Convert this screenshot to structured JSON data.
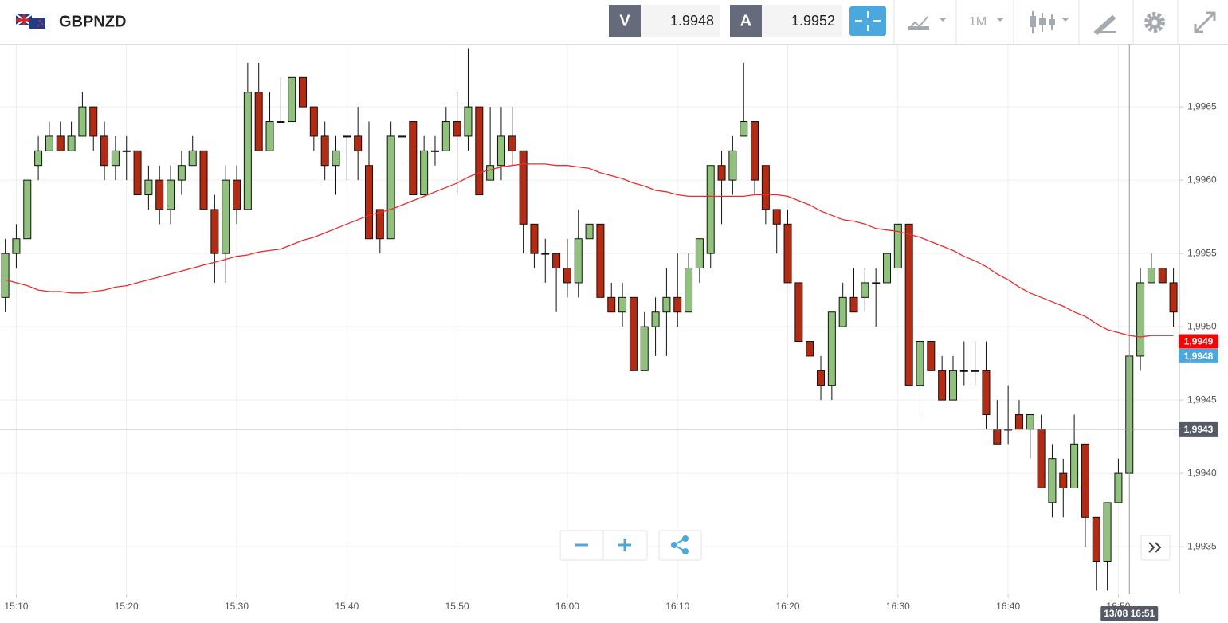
{
  "header": {
    "symbol": "GBPNZD",
    "bid_label": "V",
    "bid": "1.9948",
    "ask_label": "A",
    "ask": "1.9952",
    "timeframe": "1M"
  },
  "chart_data": {
    "type": "candlestick",
    "categories": [
      null,
      "15:10",
      null,
      null,
      null,
      null,
      null,
      null,
      null,
      null,
      null,
      "15:20",
      null,
      null,
      null,
      null,
      null,
      null,
      null,
      null,
      null,
      "15:30",
      null,
      null,
      null,
      null,
      null,
      null,
      null,
      null,
      null,
      "15:40",
      null,
      null,
      null,
      null,
      null,
      null,
      null,
      null,
      null,
      "15:50",
      null,
      null,
      null,
      null,
      null,
      null,
      null,
      null,
      null,
      "16:00",
      null,
      null,
      null,
      null,
      null,
      null,
      null,
      null,
      null,
      "16:10",
      null,
      null,
      null,
      null,
      null,
      null,
      null,
      null,
      null,
      "16:20",
      null,
      null,
      null,
      null,
      null,
      null,
      null,
      null,
      null,
      "16:30",
      null,
      null,
      null,
      null,
      null,
      null,
      null,
      null,
      null,
      "16:40",
      null,
      null,
      null,
      null,
      null,
      null,
      null,
      null,
      null,
      "16:50",
      null,
      null,
      null,
      null,
      null
    ],
    "open": [
      1.9952,
      1.9955,
      1.9956,
      1.9961,
      1.9962,
      1.9963,
      1.9962,
      1.9963,
      1.9965,
      1.9963,
      1.9961,
      1.9962,
      1.9962,
      1.9959,
      1.996,
      1.9958,
      1.996,
      1.9961,
      1.9962,
      1.9958,
      1.9955,
      1.996,
      1.9958,
      1.9966,
      1.9962,
      1.9964,
      1.9964,
      1.9967,
      1.9965,
      1.9963,
      1.9961,
      1.9963,
      1.9963,
      1.9961,
      1.9958,
      1.9956,
      1.9963,
      1.9964,
      1.9959,
      1.9962,
      1.9962,
      1.9964,
      1.9963,
      1.9965,
      1.996,
      1.9961,
      1.9963,
      1.9962,
      1.9957,
      1.9955,
      1.9955,
      1.9954,
      1.9953,
      1.9956,
      1.9957,
      1.9952,
      1.9951,
      1.9952,
      1.9947,
      1.995,
      1.9951,
      1.9952,
      1.9951,
      1.9954,
      1.9955,
      1.9961,
      1.996,
      1.9963,
      1.9964,
      1.9961,
      1.9958,
      1.9957,
      1.9953,
      1.9949,
      1.9947,
      1.9946,
      1.995,
      1.9952,
      1.9952,
      1.9953,
      1.9953,
      1.9954,
      1.9957,
      1.9946,
      1.9949,
      1.9947,
      1.9945,
      1.9947,
      1.9947,
      1.9947,
      1.9943,
      1.9943,
      1.9944,
      1.9943,
      1.9943,
      1.9938,
      1.994,
      1.9939,
      1.9942,
      1.9937,
      1.9934,
      1.9938,
      1.994,
      1.9948,
      1.9953,
      1.9954,
      1.9953
    ],
    "high": [
      1.9956,
      1.9957,
      1.996,
      1.9963,
      1.9964,
      1.9964,
      1.9964,
      1.9966,
      1.9965,
      1.9964,
      1.9963,
      1.9963,
      1.9962,
      1.9961,
      1.9961,
      1.9961,
      1.9962,
      1.9963,
      1.9962,
      1.9959,
      1.9961,
      1.9961,
      1.9968,
      1.9968,
      1.9966,
      1.9967,
      1.9967,
      1.9967,
      1.9965,
      1.9964,
      1.9963,
      1.9963,
      1.9965,
      1.9964,
      1.9958,
      1.9964,
      1.9964,
      1.9964,
      1.9963,
      1.9963,
      1.9965,
      1.9966,
      1.9969,
      1.9965,
      1.9965,
      1.9965,
      1.9965,
      1.9962,
      1.9957,
      1.9956,
      1.9955,
      1.9956,
      1.9958,
      1.9957,
      1.9957,
      1.9953,
      1.9953,
      1.9952,
      1.9951,
      1.9952,
      1.9954,
      1.9955,
      1.9955,
      1.9956,
      1.9961,
      1.9962,
      1.9963,
      1.9968,
      1.9964,
      1.9961,
      1.9958,
      1.9958,
      1.9953,
      1.9949,
      1.9948,
      1.9951,
      1.9953,
      1.9954,
      1.9954,
      1.9954,
      1.9955,
      1.9957,
      1.9957,
      1.9951,
      1.9949,
      1.9948,
      1.9948,
      1.9949,
      1.9949,
      1.9949,
      1.9945,
      1.9946,
      1.9945,
      1.9944,
      1.9944,
      1.9942,
      1.9941,
      1.9944,
      1.9942,
      1.9937,
      1.9938,
      1.9941,
      1.9948,
      1.9954,
      1.9955,
      1.9954,
      1.9954
    ],
    "low": [
      1.9951,
      1.9954,
      1.9956,
      1.996,
      1.9962,
      1.9962,
      1.9962,
      1.9963,
      1.9962,
      1.996,
      1.996,
      1.996,
      1.9959,
      1.9958,
      1.9957,
      1.9957,
      1.9959,
      1.9961,
      1.9958,
      1.9953,
      1.9953,
      1.9957,
      1.9958,
      1.9962,
      1.9962,
      1.9964,
      1.9964,
      1.9965,
      1.9962,
      1.996,
      1.9959,
      1.996,
      1.996,
      1.9956,
      1.9955,
      1.9956,
      1.9961,
      1.9959,
      1.9959,
      1.9961,
      1.9962,
      1.9959,
      1.9962,
      1.9959,
      1.996,
      1.996,
      1.9961,
      1.9955,
      1.9954,
      1.9953,
      1.9951,
      1.9952,
      1.9952,
      1.9956,
      1.9952,
      1.9951,
      1.995,
      1.9947,
      1.9947,
      1.9948,
      1.9948,
      1.995,
      1.9951,
      1.9953,
      1.9954,
      1.9957,
      1.9959,
      1.9963,
      1.9959,
      1.9957,
      1.9955,
      1.9953,
      1.9949,
      1.9948,
      1.9945,
      1.9945,
      1.995,
      1.9951,
      1.9951,
      1.995,
      1.9953,
      1.9954,
      1.9946,
      1.9944,
      1.9947,
      1.9945,
      1.9945,
      1.9946,
      1.9946,
      1.9943,
      1.9942,
      1.9942,
      1.9943,
      1.9941,
      1.9939,
      1.9937,
      1.9937,
      1.9939,
      1.9935,
      1.9932,
      1.9932,
      1.9938,
      1.994,
      1.9947,
      1.9953,
      1.9953,
      1.995
    ],
    "close": [
      1.9955,
      1.9956,
      1.996,
      1.9962,
      1.9963,
      1.9962,
      1.9963,
      1.9965,
      1.9963,
      1.9961,
      1.9962,
      1.9962,
      1.9959,
      1.996,
      1.9958,
      1.996,
      1.9961,
      1.9962,
      1.9958,
      1.9955,
      1.996,
      1.9958,
      1.9966,
      1.9962,
      1.9964,
      1.9964,
      1.9967,
      1.9965,
      1.9963,
      1.9961,
      1.9962,
      1.9963,
      1.9962,
      1.9956,
      1.9956,
      1.9963,
      1.9963,
      1.9959,
      1.9962,
      1.9962,
      1.9964,
      1.9963,
      1.9965,
      1.9959,
      1.9961,
      1.9963,
      1.9962,
      1.9957,
      1.9955,
      1.9955,
      1.9954,
      1.9953,
      1.9956,
      1.9957,
      1.9952,
      1.9951,
      1.9952,
      1.9947,
      1.995,
      1.9951,
      1.9952,
      1.9951,
      1.9954,
      1.9956,
      1.9961,
      1.996,
      1.9962,
      1.9964,
      1.996,
      1.9958,
      1.9957,
      1.9953,
      1.9949,
      1.9948,
      1.9946,
      1.9951,
      1.9952,
      1.9951,
      1.9953,
      1.9953,
      1.9955,
      1.9957,
      1.9946,
      1.9949,
      1.9947,
      1.9945,
      1.9947,
      1.9947,
      1.9947,
      1.9944,
      1.9942,
      1.9943,
      1.9943,
      1.9944,
      1.9939,
      1.9941,
      1.9939,
      1.9942,
      1.9937,
      1.9934,
      1.9938,
      1.994,
      1.9948,
      1.9953,
      1.9954,
      1.9953,
      1.9951
    ],
    "up_color": "#8fc27b",
    "down_color": "#b52a10",
    "ma": {
      "color": "#ee2a2a",
      "values": [
        1.99532,
        1.9953,
        1.99528,
        1.99525,
        1.99524,
        1.99524,
        1.99523,
        1.99523,
        1.99524,
        1.99525,
        1.99527,
        1.99528,
        1.9953,
        1.99532,
        1.99534,
        1.99536,
        1.99538,
        1.9954,
        1.99542,
        1.99544,
        1.99546,
        1.99548,
        1.99549,
        1.99551,
        1.99552,
        1.99553,
        1.99556,
        1.99559,
        1.99561,
        1.99564,
        1.99567,
        1.9957,
        1.99573,
        1.99576,
        1.99578,
        1.9958,
        1.99583,
        1.99586,
        1.99589,
        1.99592,
        1.99595,
        1.99598,
        1.99602,
        1.99605,
        1.99607,
        1.99609,
        1.9961,
        1.99611,
        1.99611,
        1.99611,
        1.9961,
        1.9961,
        1.99609,
        1.99608,
        1.99605,
        1.99603,
        1.99601,
        1.99598,
        1.99596,
        1.99593,
        1.99592,
        1.9959,
        1.99589,
        1.99589,
        1.99589,
        1.99589,
        1.99589,
        1.99589,
        1.9959,
        1.9959,
        1.9959,
        1.99589,
        1.99586,
        1.99583,
        1.99579,
        1.99576,
        1.99573,
        1.99572,
        1.9957,
        1.99567,
        1.99566,
        1.99565,
        1.99563,
        1.99561,
        1.99558,
        1.99555,
        1.99552,
        1.99548,
        1.99545,
        1.99541,
        1.99536,
        1.99532,
        1.99527,
        1.99523,
        1.9952,
        1.99517,
        1.99514,
        1.9951,
        1.99507,
        1.99502,
        1.99498,
        1.99496,
        1.99494,
        1.99493,
        1.99494,
        1.99494,
        1.99494
      ]
    },
    "ylim": [
      1.99318,
      1.99693
    ],
    "yticks": [
      {
        "value": 1.9935,
        "label": "1,9935"
      },
      {
        "value": 1.994,
        "label": "1,9940"
      },
      {
        "value": 1.9945,
        "label": "1,9945"
      },
      {
        "value": 1.995,
        "label": "1,9950"
      },
      {
        "value": 1.9955,
        "label": "1,9955"
      },
      {
        "value": 1.996,
        "label": "1,9960"
      },
      {
        "value": 1.9965,
        "label": "1,9965"
      }
    ],
    "grid": true,
    "price_tags": [
      {
        "value": 1.9949,
        "label": "1,9949",
        "color": "#ff0000"
      },
      {
        "value": 1.9948,
        "label": "1,9948",
        "color": "#4aa8de"
      }
    ],
    "crosshair": {
      "value": 1.9943,
      "label": "1,9943",
      "time": "13/08 16:51",
      "color": "#555b66"
    }
  }
}
